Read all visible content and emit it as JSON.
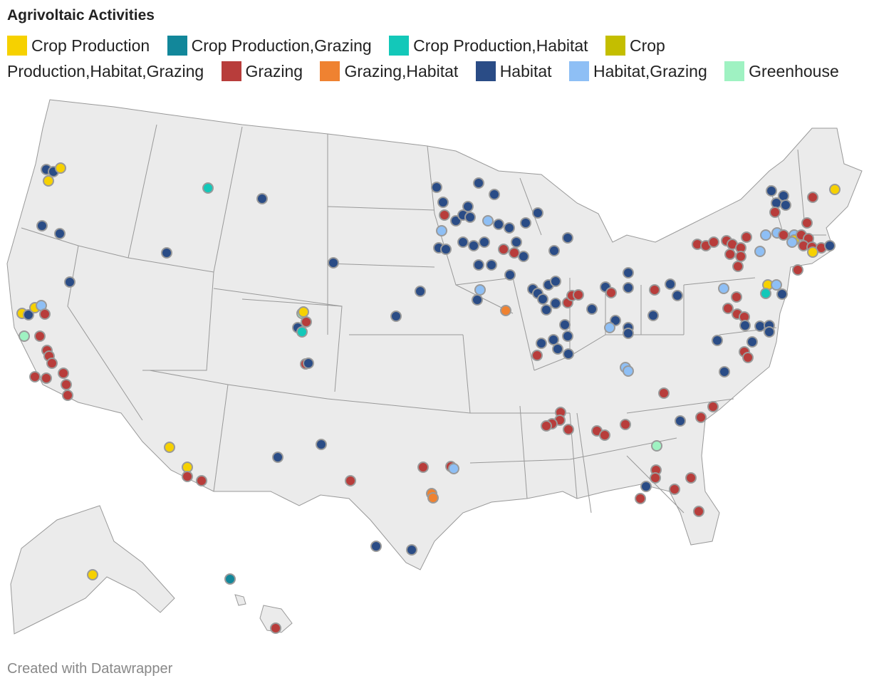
{
  "title": "Agrivoltaic Activities",
  "credit": "Created with Datawrapper",
  "legend": [
    {
      "label": "Crop Production",
      "color": "#f6d100",
      "key": "cp"
    },
    {
      "label": "Crop Production,Grazing",
      "color": "#12879a",
      "key": "cpg"
    },
    {
      "label": "Crop Production,Habitat",
      "color": "#13c8b9",
      "key": "cph"
    },
    {
      "label": "Crop Production,Habitat,Grazing",
      "color": "#c4be00",
      "key": "cphg"
    },
    {
      "label": "Grazing",
      "color": "#b83d3b",
      "key": "g"
    },
    {
      "label": "Grazing,Habitat",
      "color": "#ef8231",
      "key": "gh"
    },
    {
      "label": "Habitat",
      "color": "#2a4c86",
      "key": "h"
    },
    {
      "label": "Habitat,Grazing",
      "color": "#8ebff5",
      "key": "hg"
    },
    {
      "label": "Greenhouse",
      "color": "#9ff2c2",
      "key": "gr"
    }
  ]
}
